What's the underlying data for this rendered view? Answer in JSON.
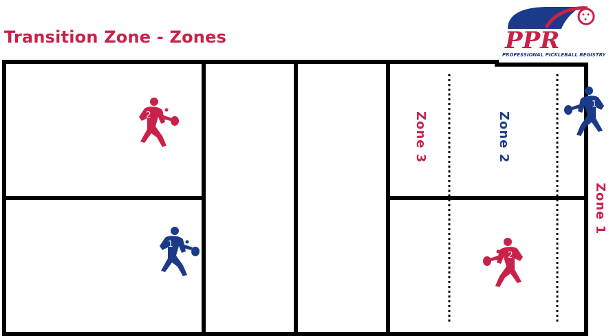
{
  "title": "Transition Zone - Zones",
  "logo": {
    "text": "PPR",
    "tagline": "PROFESSIONAL PICKLEBALL REGISTRY"
  },
  "zones": [
    {
      "label": "Zone 3",
      "color": "#c8224a"
    },
    {
      "label": "Zone 2",
      "color": "#1b3a87"
    },
    {
      "label": "Zone 1",
      "color": "#c8224a"
    }
  ],
  "players": [
    {
      "number": "2",
      "team_color": "#c8224a"
    },
    {
      "number": "1",
      "team_color": "#1b3a87"
    },
    {
      "number": "1",
      "team_color": "#1b3a87"
    },
    {
      "number": "2",
      "team_color": "#c8224a"
    }
  ]
}
